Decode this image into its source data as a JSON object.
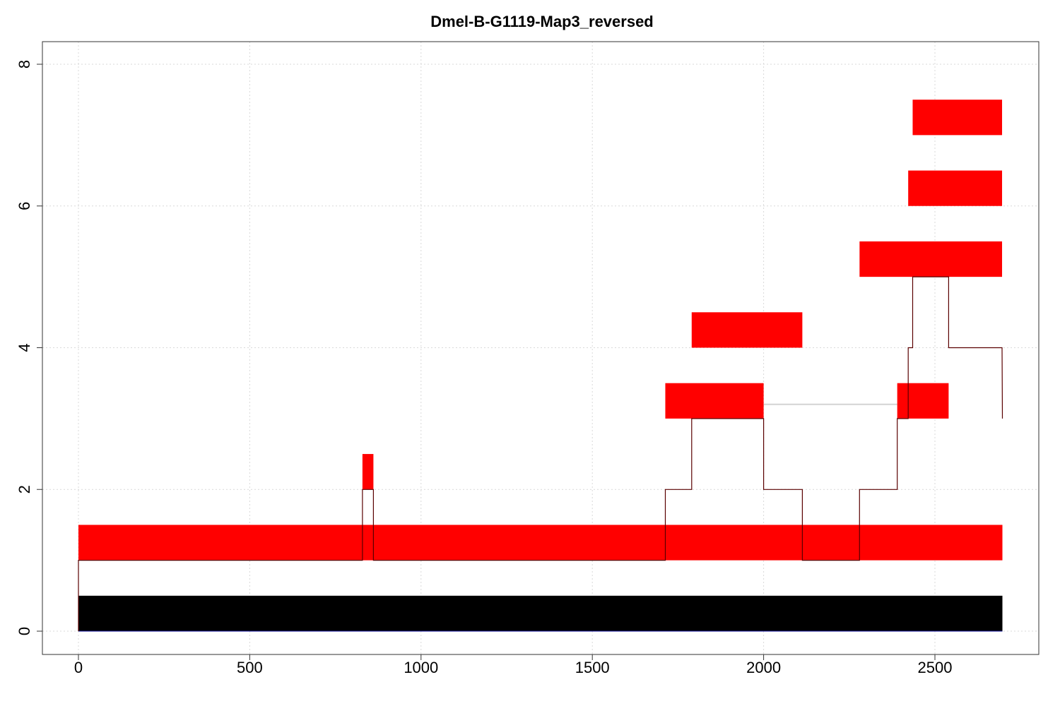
{
  "chart_data": {
    "type": "bar",
    "title": "Dmel-B-G1119-Map3_reversed",
    "xlabel": "",
    "ylabel": "",
    "xlim": [
      0,
      2700
    ],
    "ylim": [
      0,
      8
    ],
    "xticks": [
      0,
      500,
      1000,
      1500,
      2000,
      2500
    ],
    "yticks": [
      0,
      2,
      4,
      6,
      8
    ],
    "grid": true,
    "colors": {
      "reference": "#000000",
      "segment": "#ff0000",
      "coverage_line": "#5a0000",
      "connector": "#d3d3d3",
      "grid": "#d9d9d9",
      "axis": "#333333"
    },
    "reference_bar": {
      "x_start": 0,
      "x_end": 2697,
      "y_bottom": 0,
      "y_top": 0.5
    },
    "segments": [
      {
        "x_start": 0,
        "x_end": 2697,
        "y_bottom": 1,
        "y_top": 1.5
      },
      {
        "x_start": 829,
        "x_end": 861,
        "y_bottom": 2,
        "y_top": 2.5
      },
      {
        "x_start": 1713,
        "x_end": 2000,
        "y_bottom": 3,
        "y_top": 3.5
      },
      {
        "x_start": 2390,
        "x_end": 2540,
        "y_bottom": 3,
        "y_top": 3.5
      },
      {
        "x_start": 1790,
        "x_end": 2113,
        "y_bottom": 4,
        "y_top": 4.5
      },
      {
        "x_start": 2280,
        "x_end": 2696,
        "y_bottom": 5,
        "y_top": 5.5
      },
      {
        "x_start": 2422,
        "x_end": 2696,
        "y_bottom": 6,
        "y_top": 6.5
      },
      {
        "x_start": 2435,
        "x_end": 2696,
        "y_bottom": 7,
        "y_top": 7.5
      }
    ],
    "connector": {
      "x_start": 2000,
      "x_end": 2390,
      "y": 3.2
    },
    "coverage_steps": [
      [
        0,
        0
      ],
      [
        0,
        1
      ],
      [
        829,
        1
      ],
      [
        829,
        2
      ],
      [
        861,
        2
      ],
      [
        861,
        1
      ],
      [
        1713,
        1
      ],
      [
        1713,
        2
      ],
      [
        1790,
        2
      ],
      [
        1790,
        3
      ],
      [
        2000,
        3
      ],
      [
        2000,
        2
      ],
      [
        2113,
        2
      ],
      [
        2113,
        1
      ],
      [
        2280,
        1
      ],
      [
        2280,
        2
      ],
      [
        2390,
        2
      ],
      [
        2390,
        3
      ],
      [
        2422,
        3
      ],
      [
        2422,
        4
      ],
      [
        2435,
        4
      ],
      [
        2435,
        5
      ],
      [
        2540,
        5
      ],
      [
        2540,
        4
      ],
      [
        2696,
        4
      ],
      [
        2697,
        3
      ]
    ]
  }
}
